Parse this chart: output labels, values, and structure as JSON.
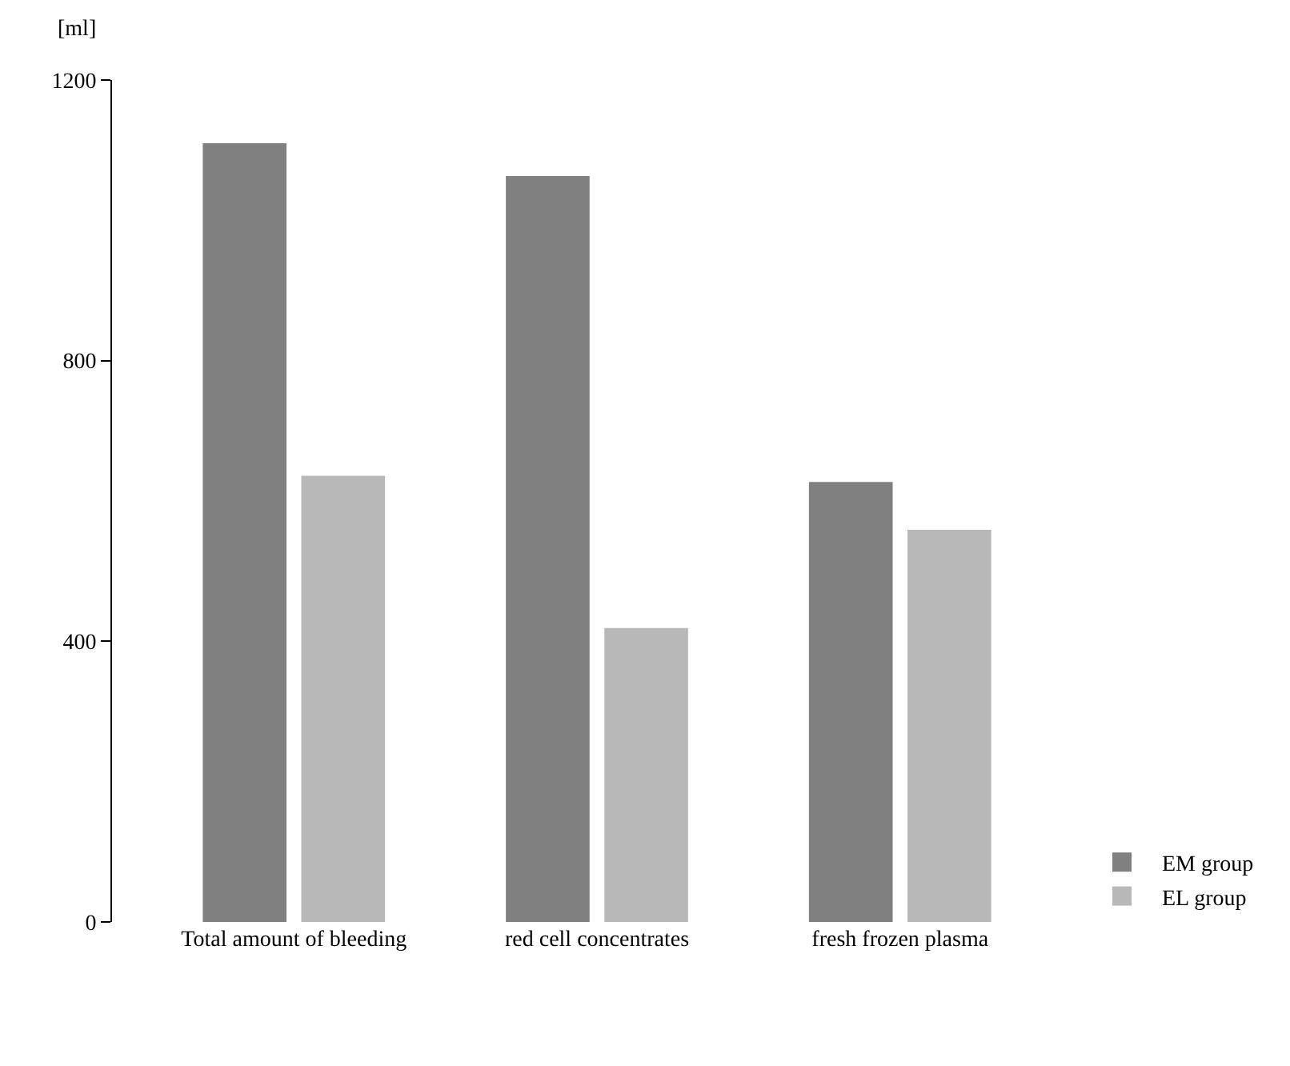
{
  "chart_data": {
    "type": "bar",
    "ylabel": "[ml]",
    "categories": [
      "Total amount of bleeding",
      "red cell concentrates",
      "fresh frozen plasma"
    ],
    "series": [
      {
        "name": "EM group",
        "color": "#808080",
        "values": [
          1110,
          1063,
          627
        ]
      },
      {
        "name": "EL group",
        "color": "#b8b8b8",
        "values": [
          636,
          419,
          559
        ]
      }
    ],
    "ylim": [
      0,
      1200
    ],
    "yticks": [
      0,
      400,
      800,
      1200
    ],
    "legend": "bottom right"
  }
}
